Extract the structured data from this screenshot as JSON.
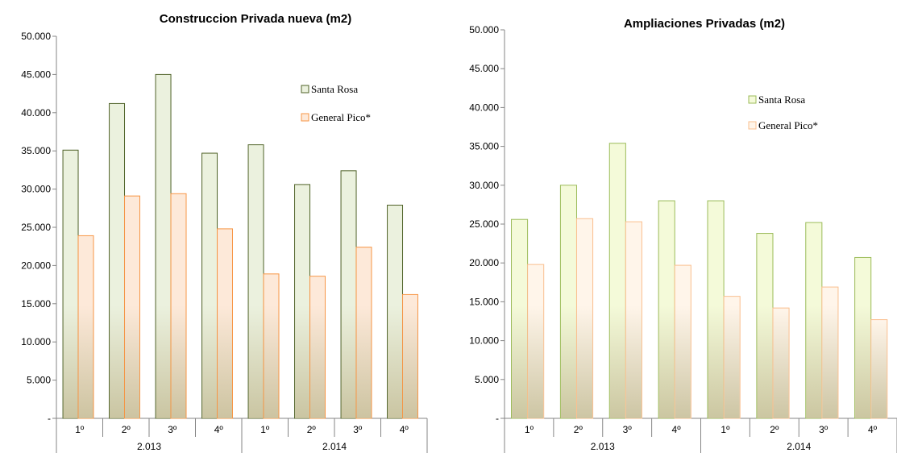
{
  "chart_data": [
    {
      "type": "bar",
      "title": "Construccion Privada nueva (m2)",
      "categories": [
        "1º",
        "2º",
        "3º",
        "4º",
        "1º",
        "2º",
        "3º",
        "4º"
      ],
      "groups": [
        {
          "label": "2.013",
          "count": 4
        },
        {
          "label": "2.014",
          "count": 4
        }
      ],
      "ylim": [
        0,
        50000
      ],
      "yticks": [
        {
          "value": 0,
          "label": "-"
        },
        {
          "value": 5000,
          "label": "5.000"
        },
        {
          "value": 10000,
          "label": "10.000"
        },
        {
          "value": 15000,
          "label": "15.000"
        },
        {
          "value": 20000,
          "label": "20.000"
        },
        {
          "value": 25000,
          "label": "25.000"
        },
        {
          "value": 30000,
          "label": "30.000"
        },
        {
          "value": 35000,
          "label": "35.000"
        },
        {
          "value": 40000,
          "label": "40.000"
        },
        {
          "value": 45000,
          "label": "45.000"
        },
        {
          "value": 50000,
          "label": "50.000"
        }
      ],
      "grid": false,
      "legend_position": "top-right",
      "series": [
        {
          "name": "Santa Rosa",
          "values": [
            35100,
            41200,
            45000,
            34700,
            35800,
            30600,
            32400,
            27900
          ],
          "fill": "#ebf1de",
          "stroke": "#4f6228"
        },
        {
          "name": "General  Pico*",
          "values": [
            23900,
            29100,
            29400,
            24800,
            18900,
            18600,
            22400,
            16200
          ],
          "fill": "#fde9d9",
          "stroke": "#f79646"
        }
      ]
    },
    {
      "type": "bar",
      "title": "Ampliaciones Privadas (m2)",
      "categories": [
        "1º",
        "2º",
        "3º",
        "4º",
        "1º",
        "2º",
        "3º",
        "4º"
      ],
      "groups": [
        {
          "label": "2.013",
          "count": 4
        },
        {
          "label": "2.014",
          "count": 4
        }
      ],
      "ylim": [
        0,
        50000
      ],
      "yticks": [
        {
          "value": 0,
          "label": "-"
        },
        {
          "value": 5000,
          "label": "5.000"
        },
        {
          "value": 10000,
          "label": "10.000"
        },
        {
          "value": 15000,
          "label": "15.000"
        },
        {
          "value": 20000,
          "label": "20.000"
        },
        {
          "value": 25000,
          "label": "25.000"
        },
        {
          "value": 30000,
          "label": "30.000"
        },
        {
          "value": 35000,
          "label": "35.000"
        },
        {
          "value": 40000,
          "label": "40.000"
        },
        {
          "value": 45000,
          "label": "45.000"
        },
        {
          "value": 50000,
          "label": "50.000"
        }
      ],
      "grid": false,
      "legend_position": "top-right",
      "series": [
        {
          "name": "Santa Rosa",
          "values": [
            25600,
            30000,
            35400,
            28000,
            28000,
            23800,
            25200,
            20700
          ],
          "fill": "#f4fad9",
          "stroke": "#9bbb59"
        },
        {
          "name": "General  Pico*",
          "values": [
            19800,
            25700,
            25300,
            19700,
            15700,
            14200,
            16900,
            12700
          ],
          "fill": "#fff5ea",
          "stroke": "#fabf8f"
        }
      ]
    }
  ]
}
